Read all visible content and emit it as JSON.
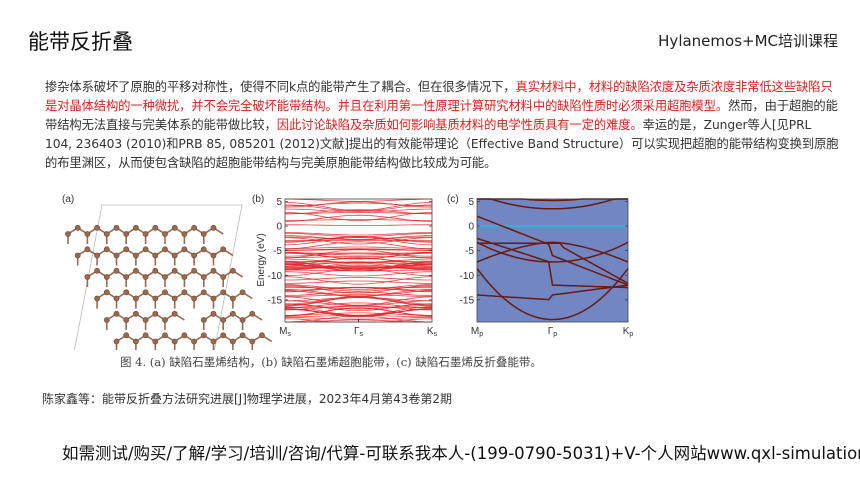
{
  "header": {
    "title": "能带反折叠",
    "course": "Hylanemos+MC培训课程"
  },
  "paragraph": [
    {
      "text": "掺杂体系破坏了原胞的平移对称性，使得不同k点的能带产生了耦合。但在很多情况下，",
      "red": false
    },
    {
      "text": "真实材料中，材料的缺陷浓度及杂质浓度非常低这些缺陷只是对晶体结构的一种微扰，并不会完全破坏能带结构。并且在利用第一性原理计算研究材料中的缺陷性质时必须采用超胞模型。",
      "red": true
    },
    {
      "text": "然而，由于超胞的能带结构无法直接与完美体系的能带做比较，",
      "red": false
    },
    {
      "text": "因此讨论缺陷及杂质如何影响基质材料的电学性质具有一定的难度。",
      "red": true
    },
    {
      "text": "幸运的是，Zunger等人[见PRL 104, 236403 (2010)和PRB 85, 085201 (2012)文献]提出的有效能带理论（Effective Band Structure）可以实现把超胞的能带结构变换到原胞的布里渊区，从而使包含缺陷的超胞能带结构与完美原胞能带结构做比较成为可能。",
      "red": false
    }
  ],
  "figure": {
    "panel_a_label": "(a)",
    "panel_b_label": "(b)",
    "panel_c_label": "(c)",
    "ylabel": "Energy (eV)",
    "yticks": [
      "5",
      "0",
      "-5",
      "-10",
      "-15"
    ],
    "ytick_values": [
      5,
      0,
      -5,
      -10,
      -15
    ],
    "ylim": [
      -19.5,
      5.5
    ],
    "b_xticks": [
      {
        "main": "M",
        "sub": "s"
      },
      {
        "main": "Γ",
        "sub": "s"
      },
      {
        "main": "K",
        "sub": "s"
      }
    ],
    "c_xticks": [
      {
        "main": "M",
        "sub": "p"
      },
      {
        "main": "Γ",
        "sub": "p"
      },
      {
        "main": "K",
        "sub": "p"
      }
    ],
    "colors": {
      "atom": "#9a6a4e",
      "supercell_bands": "#e0262a",
      "unfolded_bg": "#7186c2",
      "unfolded_bands": "#6a1a10"
    },
    "caption": "图 4. (a) 缺陷石墨烯结构，(b) 缺陷石墨烯超胞能带，(c) 缺陷石墨烯反折叠能带。"
  },
  "citation": "陈家鑫等：能带反折叠方法研究进展[J]物理学进展，2023年4月第43卷第2期",
  "footer": "如需测试/购买/了解/学习/培训/咨询/代算-可联系我本人-(199-0790-5031)+V-个人网站www.qxl-simulation.cn"
}
